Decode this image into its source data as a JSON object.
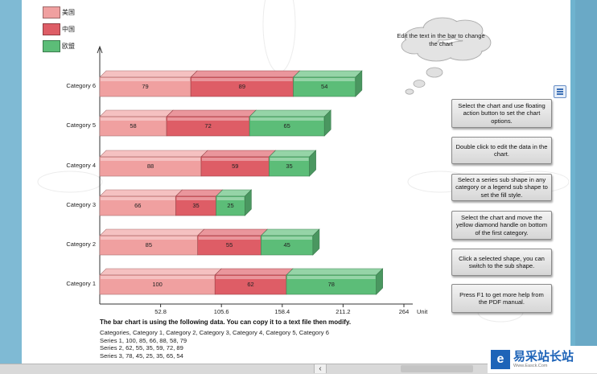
{
  "chart_data": {
    "type": "bar",
    "orientation": "horizontal",
    "stacked": true,
    "categories": [
      "Category 1",
      "Category 2",
      "Category 3",
      "Category 4",
      "Category 5",
      "Category 6"
    ],
    "series": [
      {
        "name": "美国",
        "values": [
          100,
          85,
          66,
          88,
          58,
          79
        ],
        "color": "#f0a0a0"
      },
      {
        "name": "中国",
        "values": [
          62,
          55,
          35,
          59,
          72,
          89
        ],
        "color": "#de5d66"
      },
      {
        "name": "欧盟",
        "values": [
          78,
          45,
          25,
          35,
          65,
          54
        ],
        "color": "#5cbd78"
      }
    ],
    "x_ticks": [
      "52.8",
      "105.6",
      "158.4",
      "211.2",
      "264"
    ],
    "x_unit": "Unit",
    "xlim": [
      0,
      264
    ],
    "legend_position": "top-left",
    "grid": false
  },
  "callout": {
    "text": "Edit the text in the bar to change the chart"
  },
  "tips": [
    "Select the chart and use floating action button to set the chart options.",
    "Double click to edit the data in the chart.",
    "Select a series sub shape in any category or a legend sub shape to set the fill style.",
    "Select the chart and move the yellow diamond handle on bottom of the first category.",
    "Click a selected shape, you can switch to the sub shape.",
    "Press F1 to get more help from the PDF manual."
  ],
  "data_note": {
    "heading": "The bar chart is using the following data. You can copy it to a text file then modify.",
    "lines": [
      "Categories, Category 1, Category 2, Category 3, Category 4, Category 5, Category 6",
      "Series 1, 100, 85, 66, 88, 58, 79",
      "Series 2, 62, 55, 35, 59, 72, 89",
      "Series 3, 78, 45, 25, 35, 65, 54"
    ]
  },
  "watermark": {
    "logo": "e",
    "title": "易采站长站",
    "url": "Www.Easck.Com"
  },
  "scrollbar": {
    "arrow": "‹"
  }
}
